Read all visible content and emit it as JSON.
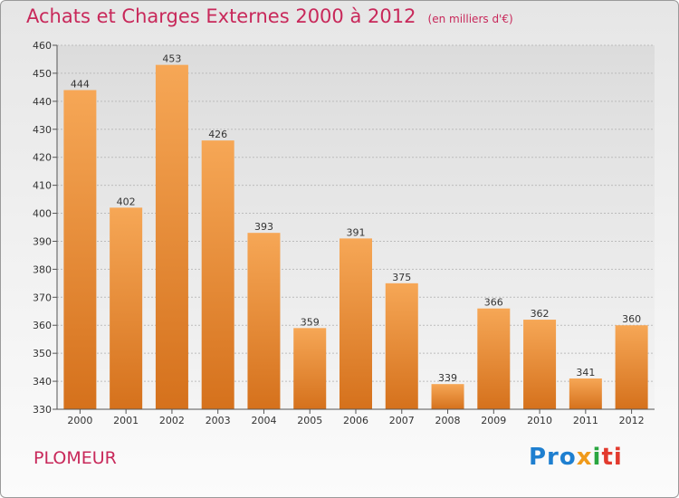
{
  "header": {
    "title": "Achats et Charges Externes 2000 à 2012",
    "subtitle": "(en milliers d'€)"
  },
  "footer": {
    "town": "PLOMEUR",
    "logo": {
      "p1": "Pro",
      "p2": "x",
      "p3": "i",
      "p4": "ti"
    }
  },
  "chart_data": {
    "type": "bar",
    "title": "Achats et Charges Externes 2000 à 2012",
    "subtitle": "(en milliers d'€)",
    "categories": [
      "2000",
      "2001",
      "2002",
      "2003",
      "2004",
      "2005",
      "2006",
      "2007",
      "2008",
      "2009",
      "2010",
      "2011",
      "2012"
    ],
    "values": [
      444,
      402,
      453,
      426,
      393,
      359,
      391,
      375,
      339,
      366,
      362,
      341,
      360
    ],
    "ylim": [
      330,
      460
    ],
    "yticks": [
      330,
      340,
      350,
      360,
      370,
      380,
      390,
      400,
      410,
      420,
      430,
      440,
      450,
      460
    ],
    "grid": true,
    "legend": "none",
    "bar_color": "#f0923a"
  }
}
